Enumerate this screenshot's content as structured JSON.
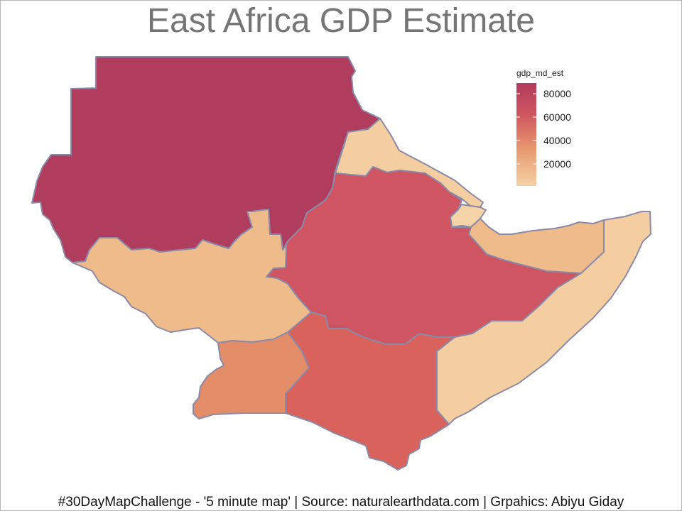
{
  "title": "East Africa GDP Estimate",
  "legend": {
    "title": "gdp_md_est",
    "breaks": [
      80000,
      60000,
      40000,
      20000
    ],
    "color_low": "#f4d1a6",
    "color_high": "#b03c5e"
  },
  "caption": "#30DayMapChallenge - '5 minute map' | Source: naturalearthdata.com | Grpahics: Abiyu Giday",
  "colors": {
    "border": "#8a8aa8"
  }
}
